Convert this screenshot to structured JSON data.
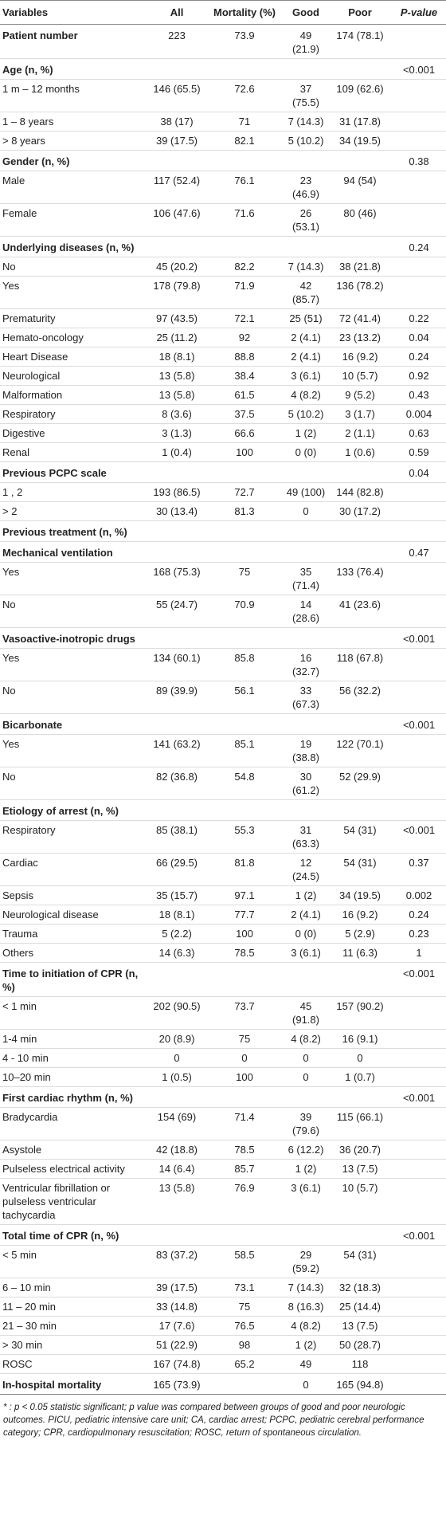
{
  "table": {
    "headers": [
      "Variables",
      "All",
      "Mortality (%)",
      "Good",
      "Poor",
      "P-value"
    ],
    "rows": [
      {
        "type": "sec",
        "cells": [
          "Patient number",
          "223",
          "73.9",
          "49 (21.9)",
          "174 (78.1)",
          ""
        ]
      },
      {
        "type": "sec",
        "cells": [
          "Age (n, %)",
          "",
          "",
          "",
          "",
          "<0.001"
        ]
      },
      {
        "type": "row",
        "cells": [
          "1 m – 12 months",
          "146 (65.5)",
          "72.6",
          "37 (75.5)",
          "109 (62.6)",
          ""
        ]
      },
      {
        "type": "row",
        "cells": [
          "1 – 8 years",
          "38 (17)",
          "71",
          "7 (14.3)",
          "31 (17.8)",
          ""
        ]
      },
      {
        "type": "row",
        "cells": [
          "> 8 years",
          "39 (17.5)",
          "82.1",
          "5 (10.2)",
          "34 (19.5)",
          ""
        ]
      },
      {
        "type": "sec",
        "cells": [
          "Gender (n, %)",
          "",
          "",
          "",
          "",
          "0.38"
        ]
      },
      {
        "type": "row",
        "cells": [
          "Male",
          "117 (52.4)",
          "76.1",
          "23 (46.9)",
          "94 (54)",
          ""
        ]
      },
      {
        "type": "row",
        "cells": [
          "Female",
          "106 (47.6)",
          "71.6",
          "26 (53.1)",
          "80 (46)",
          ""
        ]
      },
      {
        "type": "sec",
        "cells": [
          "Underlying diseases (n, %)",
          "",
          "",
          "",
          "",
          "0.24"
        ]
      },
      {
        "type": "row",
        "cells": [
          "No",
          "45 (20.2)",
          "82.2",
          "7 (14.3)",
          "38 (21.8)",
          ""
        ]
      },
      {
        "type": "row",
        "cells": [
          "Yes",
          "178 (79.8)",
          "71.9",
          "42 (85.7)",
          "136 (78.2)",
          ""
        ]
      },
      {
        "type": "row",
        "cells": [
          "Prematurity",
          "97 (43.5)",
          "72.1",
          "25 (51)",
          "72 (41.4)",
          "0.22"
        ]
      },
      {
        "type": "row",
        "cells": [
          "Hemato-oncology",
          "25 (11.2)",
          "92",
          "2 (4.1)",
          "23 (13.2)",
          "0.04"
        ]
      },
      {
        "type": "row",
        "cells": [
          "Heart Disease",
          "18 (8.1)",
          "88.8",
          "2 (4.1)",
          "16 (9.2)",
          "0.24"
        ]
      },
      {
        "type": "row",
        "cells": [
          "Neurological",
          "13 (5.8)",
          "38.4",
          "3 (6.1)",
          "10 (5.7)",
          "0.92"
        ]
      },
      {
        "type": "row",
        "cells": [
          "Malformation",
          "13 (5.8)",
          "61.5",
          "4 (8.2)",
          "9 (5.2)",
          "0.43"
        ]
      },
      {
        "type": "row",
        "cells": [
          "Respiratory",
          "8 (3.6)",
          "37.5",
          "5 (10.2)",
          "3 (1.7)",
          "0.004"
        ]
      },
      {
        "type": "row",
        "cells": [
          "Digestive",
          "3 (1.3)",
          "66.6",
          "1 (2)",
          "2 (1.1)",
          "0.63"
        ]
      },
      {
        "type": "row",
        "cells": [
          "Renal",
          "1 (0.4)",
          "100",
          "0 (0)",
          "1 (0.6)",
          "0.59"
        ]
      },
      {
        "type": "sec",
        "cells": [
          "Previous PCPC scale",
          "",
          "",
          "",
          "",
          "0.04"
        ]
      },
      {
        "type": "row",
        "cells": [
          "1 , 2",
          "193 (86.5)",
          "72.7",
          "49 (100)",
          "144 (82.8)",
          ""
        ]
      },
      {
        "type": "row",
        "cells": [
          "> 2",
          "30 (13.4)",
          "81.3",
          "0",
          "30 (17.2)",
          ""
        ]
      },
      {
        "type": "sec",
        "cells": [
          "Previous treatment (n, %)",
          "",
          "",
          "",
          "",
          ""
        ]
      },
      {
        "type": "sec",
        "cells": [
          "Mechanical ventilation",
          "",
          "",
          "",
          "",
          "0.47"
        ]
      },
      {
        "type": "row",
        "cells": [
          "Yes",
          "168 (75.3)",
          "75",
          "35 (71.4)",
          "133 (76.4)",
          ""
        ]
      },
      {
        "type": "row",
        "cells": [
          "No",
          "55 (24.7)",
          "70.9",
          "14 (28.6)",
          "41 (23.6)",
          ""
        ]
      },
      {
        "type": "sec",
        "cells": [
          "Vasoactive-inotropic drugs",
          "",
          "",
          "",
          "",
          "<0.001"
        ]
      },
      {
        "type": "row",
        "cells": [
          "Yes",
          "134 (60.1)",
          "85.8",
          "16 (32.7)",
          "118 (67.8)",
          ""
        ]
      },
      {
        "type": "row",
        "cells": [
          "No",
          "89 (39.9)",
          "56.1",
          "33 (67.3)",
          "56 (32.2)",
          ""
        ]
      },
      {
        "type": "sec",
        "cells": [
          "Bicarbonate",
          "",
          "",
          "",
          "",
          "<0.001"
        ]
      },
      {
        "type": "row",
        "cells": [
          "Yes",
          "141 (63.2)",
          "85.1",
          "19 (38.8)",
          "122 (70.1)",
          ""
        ]
      },
      {
        "type": "row",
        "cells": [
          "No",
          "82 (36.8)",
          "54.8",
          "30 (61.2)",
          "52 (29.9)",
          ""
        ]
      },
      {
        "type": "sec",
        "cells": [
          "Etiology of arrest (n, %)",
          "",
          "",
          "",
          "",
          ""
        ]
      },
      {
        "type": "row",
        "cells": [
          "Respiratory",
          "85 (38.1)",
          "55.3",
          "31 (63.3)",
          "54 (31)",
          "<0.001"
        ]
      },
      {
        "type": "row",
        "cells": [
          "Cardiac",
          "66 (29.5)",
          "81.8",
          "12 (24.5)",
          "54 (31)",
          "0.37"
        ]
      },
      {
        "type": "row",
        "cells": [
          "Sepsis",
          "35 (15.7)",
          "97.1",
          "1 (2)",
          "34 (19.5)",
          "0.002"
        ]
      },
      {
        "type": "row",
        "cells": [
          "Neurological disease",
          "18 (8.1)",
          "77.7",
          "2 (4.1)",
          "16 (9.2)",
          "0.24"
        ]
      },
      {
        "type": "row",
        "cells": [
          "Trauma",
          "5 (2.2)",
          "100",
          "0 (0)",
          "5 (2.9)",
          "0.23"
        ]
      },
      {
        "type": "row",
        "cells": [
          "Others",
          "14 (6.3)",
          "78.5",
          "3 (6.1)",
          "11 (6.3)",
          "1"
        ]
      },
      {
        "type": "sec",
        "cells": [
          "Time to initiation of CPR (n, %)",
          "",
          "",
          "",
          "",
          "<0.001"
        ]
      },
      {
        "type": "row",
        "cells": [
          "< 1 min",
          "202 (90.5)",
          "73.7",
          "45 (91.8)",
          "157 (90.2)",
          ""
        ]
      },
      {
        "type": "row",
        "cells": [
          "1-4 min",
          "20 (8.9)",
          "75",
          "4 (8.2)",
          "16 (9.1)",
          ""
        ]
      },
      {
        "type": "row",
        "cells": [
          "4 - 10 min",
          "0",
          "0",
          "0",
          "0",
          ""
        ]
      },
      {
        "type": "row",
        "cells": [
          "10–20 min",
          "1 (0.5)",
          "100",
          "0",
          "1 (0.7)",
          ""
        ]
      },
      {
        "type": "sec",
        "cells": [
          "First cardiac rhythm (n, %)",
          "",
          "",
          "",
          "",
          "<0.001"
        ]
      },
      {
        "type": "row",
        "cells": [
          "Bradycardia",
          "154 (69)",
          "71.4",
          "39 (79.6)",
          "115 (66.1)",
          ""
        ]
      },
      {
        "type": "row",
        "cells": [
          "Asystole",
          "42 (18.8)",
          "78.5",
          "6 (12.2)",
          "36 (20.7)",
          ""
        ]
      },
      {
        "type": "row",
        "cells": [
          "Pulseless electrical activity",
          "14 (6.4)",
          "85.7",
          "1 (2)",
          "13 (7.5)",
          ""
        ]
      },
      {
        "type": "row",
        "cells": [
          "Ventricular fibrillation or pulseless ventricular tachycardia",
          "13 (5.8)",
          "76.9",
          "3 (6.1)",
          "10 (5.7)",
          ""
        ]
      },
      {
        "type": "sec",
        "cells": [
          "Total time of CPR (n, %)",
          "",
          "",
          "",
          "",
          "<0.001"
        ]
      },
      {
        "type": "row",
        "cells": [
          "< 5 min",
          "83 (37.2)",
          "58.5",
          "29 (59.2)",
          "54 (31)",
          ""
        ]
      },
      {
        "type": "row",
        "cells": [
          "6 – 10 min",
          "39 (17.5)",
          "73.1",
          "7 (14.3)",
          "32 (18.3)",
          ""
        ]
      },
      {
        "type": "row",
        "cells": [
          "11 – 20 min",
          "33 (14.8)",
          "75",
          "8 (16.3)",
          "25 (14.4)",
          ""
        ]
      },
      {
        "type": "row",
        "cells": [
          "21 – 30 min",
          "17 (7.6)",
          "76.5",
          "4 (8.2)",
          "13 (7.5)",
          ""
        ]
      },
      {
        "type": "row",
        "cells": [
          "> 30 min",
          "51 (22.9)",
          "98",
          "1 (2)",
          "50 (28.7)",
          ""
        ]
      },
      {
        "type": "row",
        "cells": [
          "ROSC",
          "167 (74.8)",
          "65.2",
          "49",
          "118",
          ""
        ]
      },
      {
        "type": "sec",
        "cells": [
          "In-hospital mortality",
          "165 (73.9)",
          "",
          "0",
          "165 (94.8)",
          ""
        ]
      }
    ]
  },
  "footnote": "* : p < 0.05 statistic significant; p value was compared between groups of good and poor neurologic outcomes. PICU, pediatric intensive care unit; CA, cardiac arrest; PCPC, pediatric cerebral performance category; CPR, cardiopulmonary resuscitation; ROSC, return of spontaneous circulation."
}
